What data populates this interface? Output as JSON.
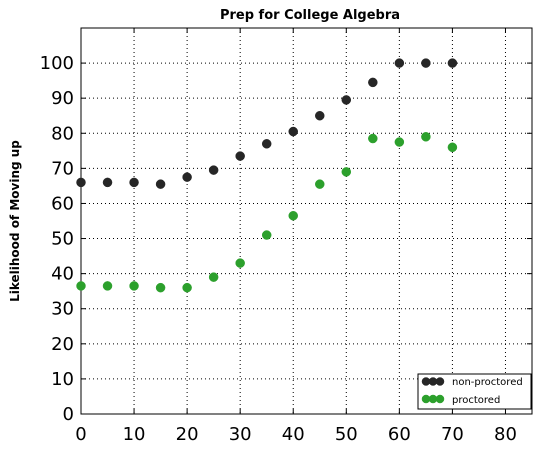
{
  "chart_data": {
    "type": "scatter",
    "title": "Prep for College Algebra",
    "xlabel": "",
    "ylabel": "Likelihood of Moving up",
    "xlim": [
      0,
      85
    ],
    "ylim": [
      0,
      110
    ],
    "xticks": [
      0,
      10,
      20,
      30,
      40,
      50,
      60,
      70,
      80
    ],
    "yticks": [
      0,
      10,
      20,
      30,
      40,
      50,
      60,
      70,
      80,
      90,
      100
    ],
    "grid": true,
    "legend_position": "bottom-right",
    "series": [
      {
        "name": "non-proctored",
        "color": "#262626",
        "x": [
          0,
          5,
          10,
          15,
          20,
          25,
          30,
          35,
          40,
          45,
          50,
          55,
          60,
          65,
          70
        ],
        "y": [
          66,
          66,
          66,
          65.5,
          67.5,
          69.5,
          73.5,
          77,
          80.5,
          85,
          89.5,
          94.5,
          100,
          100,
          100
        ]
      },
      {
        "name": "proctored",
        "color": "#2ca02c",
        "x": [
          0,
          5,
          10,
          15,
          20,
          25,
          30,
          35,
          40,
          45,
          50,
          55,
          60,
          65,
          70
        ],
        "y": [
          36.5,
          36.5,
          36.5,
          36,
          36,
          39,
          43,
          51,
          56.5,
          65.5,
          69,
          78.5,
          77.5,
          79,
          76
        ]
      }
    ]
  }
}
